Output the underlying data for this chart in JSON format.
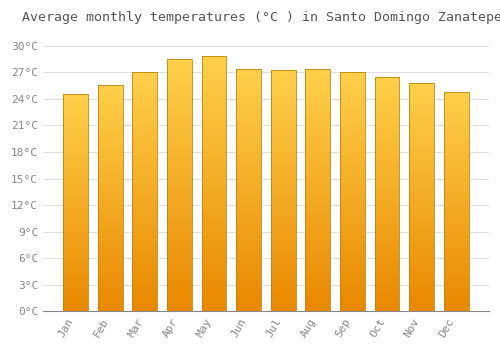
{
  "title": "Average monthly temperatures (°C ) in Santo Domingo Zanatepec",
  "months": [
    "Jan",
    "Feb",
    "Mar",
    "Apr",
    "May",
    "Jun",
    "Jul",
    "Aug",
    "Sep",
    "Oct",
    "Nov",
    "Dec"
  ],
  "values": [
    24.5,
    25.5,
    27.0,
    28.5,
    28.8,
    27.3,
    27.2,
    27.3,
    27.0,
    26.5,
    25.8,
    24.8
  ],
  "bar_color_bright": "#FFD04A",
  "bar_color_mid": "#FFAA00",
  "bar_color_dark": "#E88800",
  "bar_edge_color": "#B8860B",
  "background_color": "#FFFFFF",
  "plot_bg_color": "#FFFFFF",
  "grid_color": "#DDDDDD",
  "yticks": [
    0,
    3,
    6,
    9,
    12,
    15,
    18,
    21,
    24,
    27,
    30
  ],
  "ylim": [
    0,
    31.5
  ],
  "title_fontsize": 9.5,
  "tick_fontsize": 8,
  "font_family": "monospace"
}
